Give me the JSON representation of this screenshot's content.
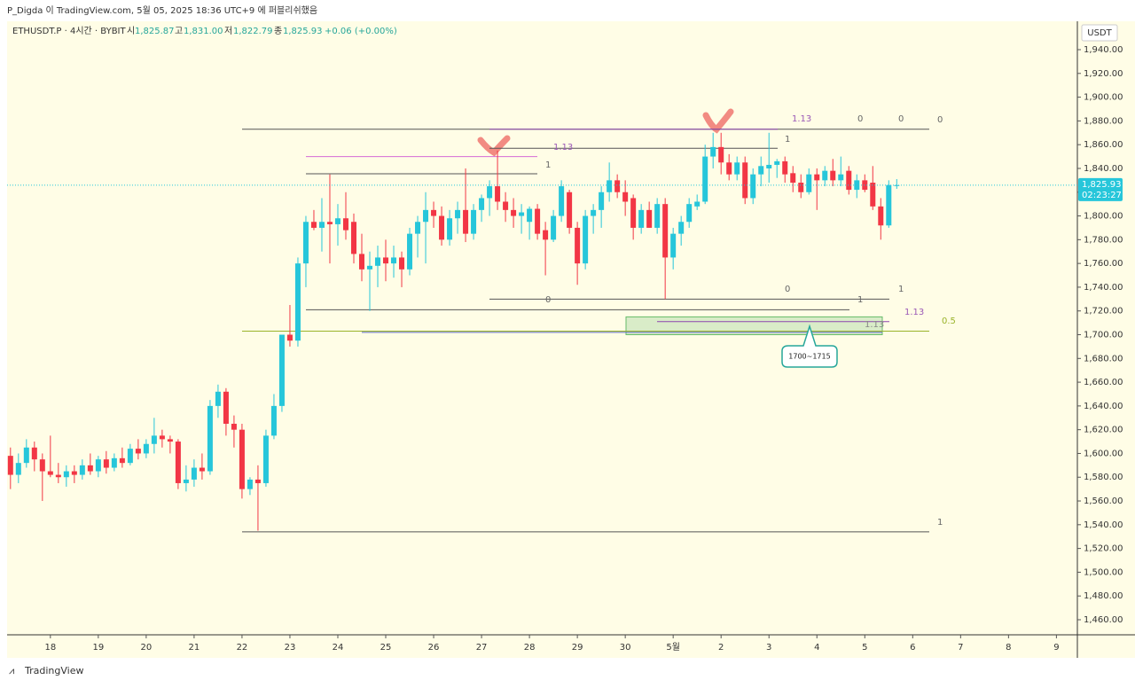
{
  "chart_data": {
    "type": "candlestick",
    "publisher": "P_Digda 이 TradingView.com, 5월 05, 2025 18:36 UTC+9 에 퍼블리쉬했음",
    "legend": {
      "symbol": "ETHUSDT.P · 4시간 · BYBIT",
      "open_label": "시",
      "open": "1,825.87",
      "high_label": "고",
      "high": "1,831.00",
      "low_label": "저",
      "low": "1,822.79",
      "close_label": "종",
      "close": "1,825.93",
      "change": "+0.06 (+0.00%)"
    },
    "currency": "USDT",
    "last_price": {
      "value": 1825.93,
      "label": "1,825.93"
    },
    "countdown": "02:23:27",
    "brand": "TradingView",
    "up_color": "#26c6da",
    "down_color": "#f23645",
    "candles": [
      [
        1598,
        1605,
        1570,
        1582
      ],
      [
        1582,
        1600,
        1575,
        1592
      ],
      [
        1592,
        1612,
        1588,
        1605
      ],
      [
        1605,
        1610,
        1585,
        1595
      ],
      [
        1595,
        1600,
        1560,
        1585
      ],
      [
        1585,
        1615,
        1580,
        1582
      ],
      [
        1582,
        1592,
        1575,
        1580
      ],
      [
        1580,
        1590,
        1572,
        1585
      ],
      [
        1585,
        1590,
        1575,
        1582
      ],
      [
        1582,
        1595,
        1578,
        1590
      ],
      [
        1590,
        1600,
        1582,
        1585
      ],
      [
        1585,
        1598,
        1580,
        1595
      ],
      [
        1595,
        1602,
        1583,
        1588
      ],
      [
        1588,
        1600,
        1585,
        1596
      ],
      [
        1596,
        1605,
        1588,
        1592
      ],
      [
        1592,
        1608,
        1590,
        1604
      ],
      [
        1604,
        1612,
        1595,
        1600
      ],
      [
        1600,
        1612,
        1596,
        1608
      ],
      [
        1608,
        1630,
        1600,
        1615
      ],
      [
        1615,
        1620,
        1605,
        1612
      ],
      [
        1612,
        1615,
        1600,
        1610
      ],
      [
        1610,
        1612,
        1570,
        1575
      ],
      [
        1575,
        1590,
        1568,
        1578
      ],
      [
        1578,
        1595,
        1572,
        1588
      ],
      [
        1588,
        1600,
        1578,
        1585
      ],
      [
        1585,
        1645,
        1582,
        1640
      ],
      [
        1640,
        1658,
        1630,
        1652
      ],
      [
        1652,
        1655,
        1615,
        1625
      ],
      [
        1625,
        1632,
        1605,
        1620
      ],
      [
        1620,
        1625,
        1562,
        1570
      ],
      [
        1570,
        1580,
        1565,
        1578
      ],
      [
        1578,
        1590,
        1535,
        1575
      ],
      [
        1575,
        1620,
        1572,
        1615
      ],
      [
        1615,
        1650,
        1612,
        1640
      ],
      [
        1640,
        1700,
        1635,
        1700
      ],
      [
        1700,
        1725,
        1690,
        1695
      ],
      [
        1695,
        1765,
        1690,
        1760
      ],
      [
        1760,
        1800,
        1740,
        1795
      ],
      [
        1795,
        1805,
        1788,
        1790
      ],
      [
        1790,
        1815,
        1770,
        1795
      ],
      [
        1795,
        1835,
        1760,
        1793
      ],
      [
        1793,
        1810,
        1775,
        1798
      ],
      [
        1798,
        1820,
        1780,
        1788
      ],
      [
        1795,
        1802,
        1760,
        1768
      ],
      [
        1768,
        1785,
        1745,
        1755
      ],
      [
        1755,
        1770,
        1720,
        1758
      ],
      [
        1758,
        1775,
        1740,
        1765
      ],
      [
        1765,
        1780,
        1745,
        1760
      ],
      [
        1760,
        1775,
        1748,
        1765
      ],
      [
        1765,
        1770,
        1740,
        1755
      ],
      [
        1755,
        1790,
        1750,
        1785
      ],
      [
        1785,
        1800,
        1765,
        1795
      ],
      [
        1795,
        1820,
        1760,
        1805
      ],
      [
        1805,
        1812,
        1790,
        1800
      ],
      [
        1800,
        1808,
        1775,
        1780
      ],
      [
        1780,
        1805,
        1775,
        1798
      ],
      [
        1798,
        1812,
        1785,
        1805
      ],
      [
        1805,
        1840,
        1778,
        1785
      ],
      [
        1785,
        1810,
        1780,
        1805
      ],
      [
        1805,
        1818,
        1795,
        1815
      ],
      [
        1815,
        1830,
        1800,
        1825
      ],
      [
        1825,
        1855,
        1805,
        1812
      ],
      [
        1812,
        1820,
        1795,
        1805
      ],
      [
        1805,
        1815,
        1790,
        1800
      ],
      [
        1800,
        1810,
        1785,
        1803
      ],
      [
        1795,
        1808,
        1780,
        1806
      ],
      [
        1806,
        1810,
        1780,
        1785
      ],
      [
        1788,
        1795,
        1750,
        1780
      ],
      [
        1780,
        1805,
        1778,
        1800
      ],
      [
        1800,
        1830,
        1795,
        1825
      ],
      [
        1820,
        1822,
        1785,
        1790
      ],
      [
        1790,
        1795,
        1742,
        1760
      ],
      [
        1760,
        1805,
        1755,
        1800
      ],
      [
        1800,
        1810,
        1785,
        1805
      ],
      [
        1805,
        1825,
        1790,
        1820
      ],
      [
        1820,
        1845,
        1812,
        1830
      ],
      [
        1830,
        1835,
        1815,
        1820
      ],
      [
        1820,
        1830,
        1800,
        1812
      ],
      [
        1815,
        1818,
        1780,
        1790
      ],
      [
        1790,
        1810,
        1785,
        1805
      ],
      [
        1805,
        1812,
        1790,
        1790
      ],
      [
        1790,
        1815,
        1785,
        1810
      ],
      [
        1810,
        1815,
        1730,
        1765
      ],
      [
        1765,
        1790,
        1755,
        1785
      ],
      [
        1785,
        1800,
        1775,
        1795
      ],
      [
        1795,
        1815,
        1790,
        1810
      ],
      [
        1808,
        1818,
        1805,
        1812
      ],
      [
        1812,
        1860,
        1810,
        1850
      ],
      [
        1850,
        1870,
        1840,
        1858
      ],
      [
        1858,
        1870,
        1835,
        1845
      ],
      [
        1845,
        1852,
        1830,
        1835
      ],
      [
        1835,
        1850,
        1830,
        1845
      ],
      [
        1845,
        1850,
        1810,
        1815
      ],
      [
        1815,
        1840,
        1810,
        1835
      ],
      [
        1835,
        1850,
        1825,
        1842
      ],
      [
        1840,
        1870,
        1828,
        1843
      ],
      [
        1843,
        1848,
        1832,
        1846
      ],
      [
        1846,
        1850,
        1828,
        1835
      ],
      [
        1836,
        1842,
        1820,
        1828
      ],
      [
        1828,
        1835,
        1815,
        1820
      ],
      [
        1820,
        1840,
        1818,
        1835
      ],
      [
        1835,
        1840,
        1805,
        1830
      ],
      [
        1830,
        1842,
        1825,
        1838
      ],
      [
        1838,
        1848,
        1825,
        1830
      ],
      [
        1830,
        1850,
        1825,
        1835
      ],
      [
        1838,
        1842,
        1818,
        1822
      ],
      [
        1822,
        1835,
        1815,
        1830
      ],
      [
        1830,
        1835,
        1820,
        1822
      ],
      [
        1828,
        1842,
        1805,
        1808
      ],
      [
        1808,
        1815,
        1780,
        1792
      ],
      [
        1792,
        1830,
        1790,
        1826
      ],
      [
        1825.87,
        1831,
        1822.79,
        1825.93
      ]
    ],
    "xlim": [
      -0.2,
      133.4
    ],
    "xticks": [
      {
        "value": 5,
        "label": "18"
      },
      {
        "value": 11,
        "label": "19"
      },
      {
        "value": 17,
        "label": "20"
      },
      {
        "value": 23,
        "label": "21"
      },
      {
        "value": 29,
        "label": "22"
      },
      {
        "value": 35,
        "label": "23"
      },
      {
        "value": 41,
        "label": "24"
      },
      {
        "value": 47,
        "label": "25"
      },
      {
        "value": 53,
        "label": "26"
      },
      {
        "value": 59,
        "label": "27"
      },
      {
        "value": 65,
        "label": "28"
      },
      {
        "value": 71,
        "label": "29"
      },
      {
        "value": 77,
        "label": "30"
      },
      {
        "value": 83,
        "label": "5월"
      },
      {
        "value": 89,
        "label": "2"
      },
      {
        "value": 95,
        "label": "3"
      },
      {
        "value": 101,
        "label": "4"
      },
      {
        "value": 107,
        "label": "5"
      },
      {
        "value": 113,
        "label": "6"
      },
      {
        "value": 119,
        "label": "7"
      },
      {
        "value": 125,
        "label": "8"
      },
      {
        "value": 131,
        "label": "9"
      }
    ],
    "ylim": [
      1447.3,
      1963.9
    ],
    "yticks": [
      {
        "value": 1460,
        "label": "1,460.00"
      },
      {
        "value": 1480,
        "label": "1,480.00"
      },
      {
        "value": 1500,
        "label": "1,500.00"
      },
      {
        "value": 1520,
        "label": "1,520.00"
      },
      {
        "value": 1540,
        "label": "1,540.00"
      },
      {
        "value": 1560,
        "label": "1,560.00"
      },
      {
        "value": 1580,
        "label": "1,580.00"
      },
      {
        "value": 1600,
        "label": "1,600.00"
      },
      {
        "value": 1620,
        "label": "1,620.00"
      },
      {
        "value": 1640,
        "label": "1,640.00"
      },
      {
        "value": 1660,
        "label": "1,660.00"
      },
      {
        "value": 1680,
        "label": "1,680.00"
      },
      {
        "value": 1700,
        "label": "1,700.00"
      },
      {
        "value": 1720,
        "label": "1,720.00"
      },
      {
        "value": 1740,
        "label": "1,740.00"
      },
      {
        "value": 1760,
        "label": "1,760.00"
      },
      {
        "value": 1780,
        "label": "1,780.00"
      },
      {
        "value": 1800,
        "label": "1,800.00"
      },
      {
        "value": 1820,
        "label": "1,820.00"
      },
      {
        "value": 1840,
        "label": "1,840.00"
      },
      {
        "value": 1860,
        "label": "1,860.00"
      },
      {
        "value": 1880,
        "label": "1,880.00"
      },
      {
        "value": 1900,
        "label": "1,900.00"
      },
      {
        "value": 1920,
        "label": "1,920.00"
      },
      {
        "value": 1940,
        "label": "1,940.00"
      }
    ],
    "levels": [
      {
        "value": 1873,
        "color": "#555555"
      },
      {
        "value": 1534,
        "color": "#555555"
      },
      {
        "value": 1703,
        "color": "#9ab32a"
      },
      {
        "value": 1873,
        "color": "#8e44ad"
      },
      {
        "value": 1857,
        "color": "#555555"
      },
      {
        "value": 1730,
        "color": "#555555"
      },
      {
        "value": 1850,
        "color": "#d66bd6"
      },
      {
        "value": 1835.5,
        "color": "#555555"
      },
      {
        "value": 1721,
        "color": "#555555"
      },
      {
        "value": 1711,
        "color": "#8e44ad"
      },
      {
        "value": 1702,
        "color": "#5c6bc0"
      }
    ],
    "level_labels": [
      {
        "text": "0",
        "color": "#666666"
      },
      {
        "text": "1",
        "color": "#666666"
      },
      {
        "text": "0.5",
        "color": "#9ab32a"
      },
      {
        "text": "1.13",
        "color": "#9b59b6"
      },
      {
        "text": "0",
        "color": "#666666"
      },
      {
        "text": "0",
        "color": "#666666"
      },
      {
        "text": "1",
        "color": "#666666"
      },
      {
        "text": "0",
        "color": "#666666"
      },
      {
        "text": "0",
        "color": "#666666"
      },
      {
        "text": "1",
        "color": "#666666"
      },
      {
        "text": "1",
        "color": "#666666"
      },
      {
        "text": "1.13",
        "color": "#9b59b6"
      },
      {
        "text": "1",
        "color": "#666666"
      },
      {
        "text": "1.13",
        "color": "#9b59b6"
      },
      {
        "text": "1.13",
        "color": "#888888"
      }
    ],
    "zone": {
      "range": [
        1700,
        1715
      ],
      "label": "1700~1715"
    }
  }
}
